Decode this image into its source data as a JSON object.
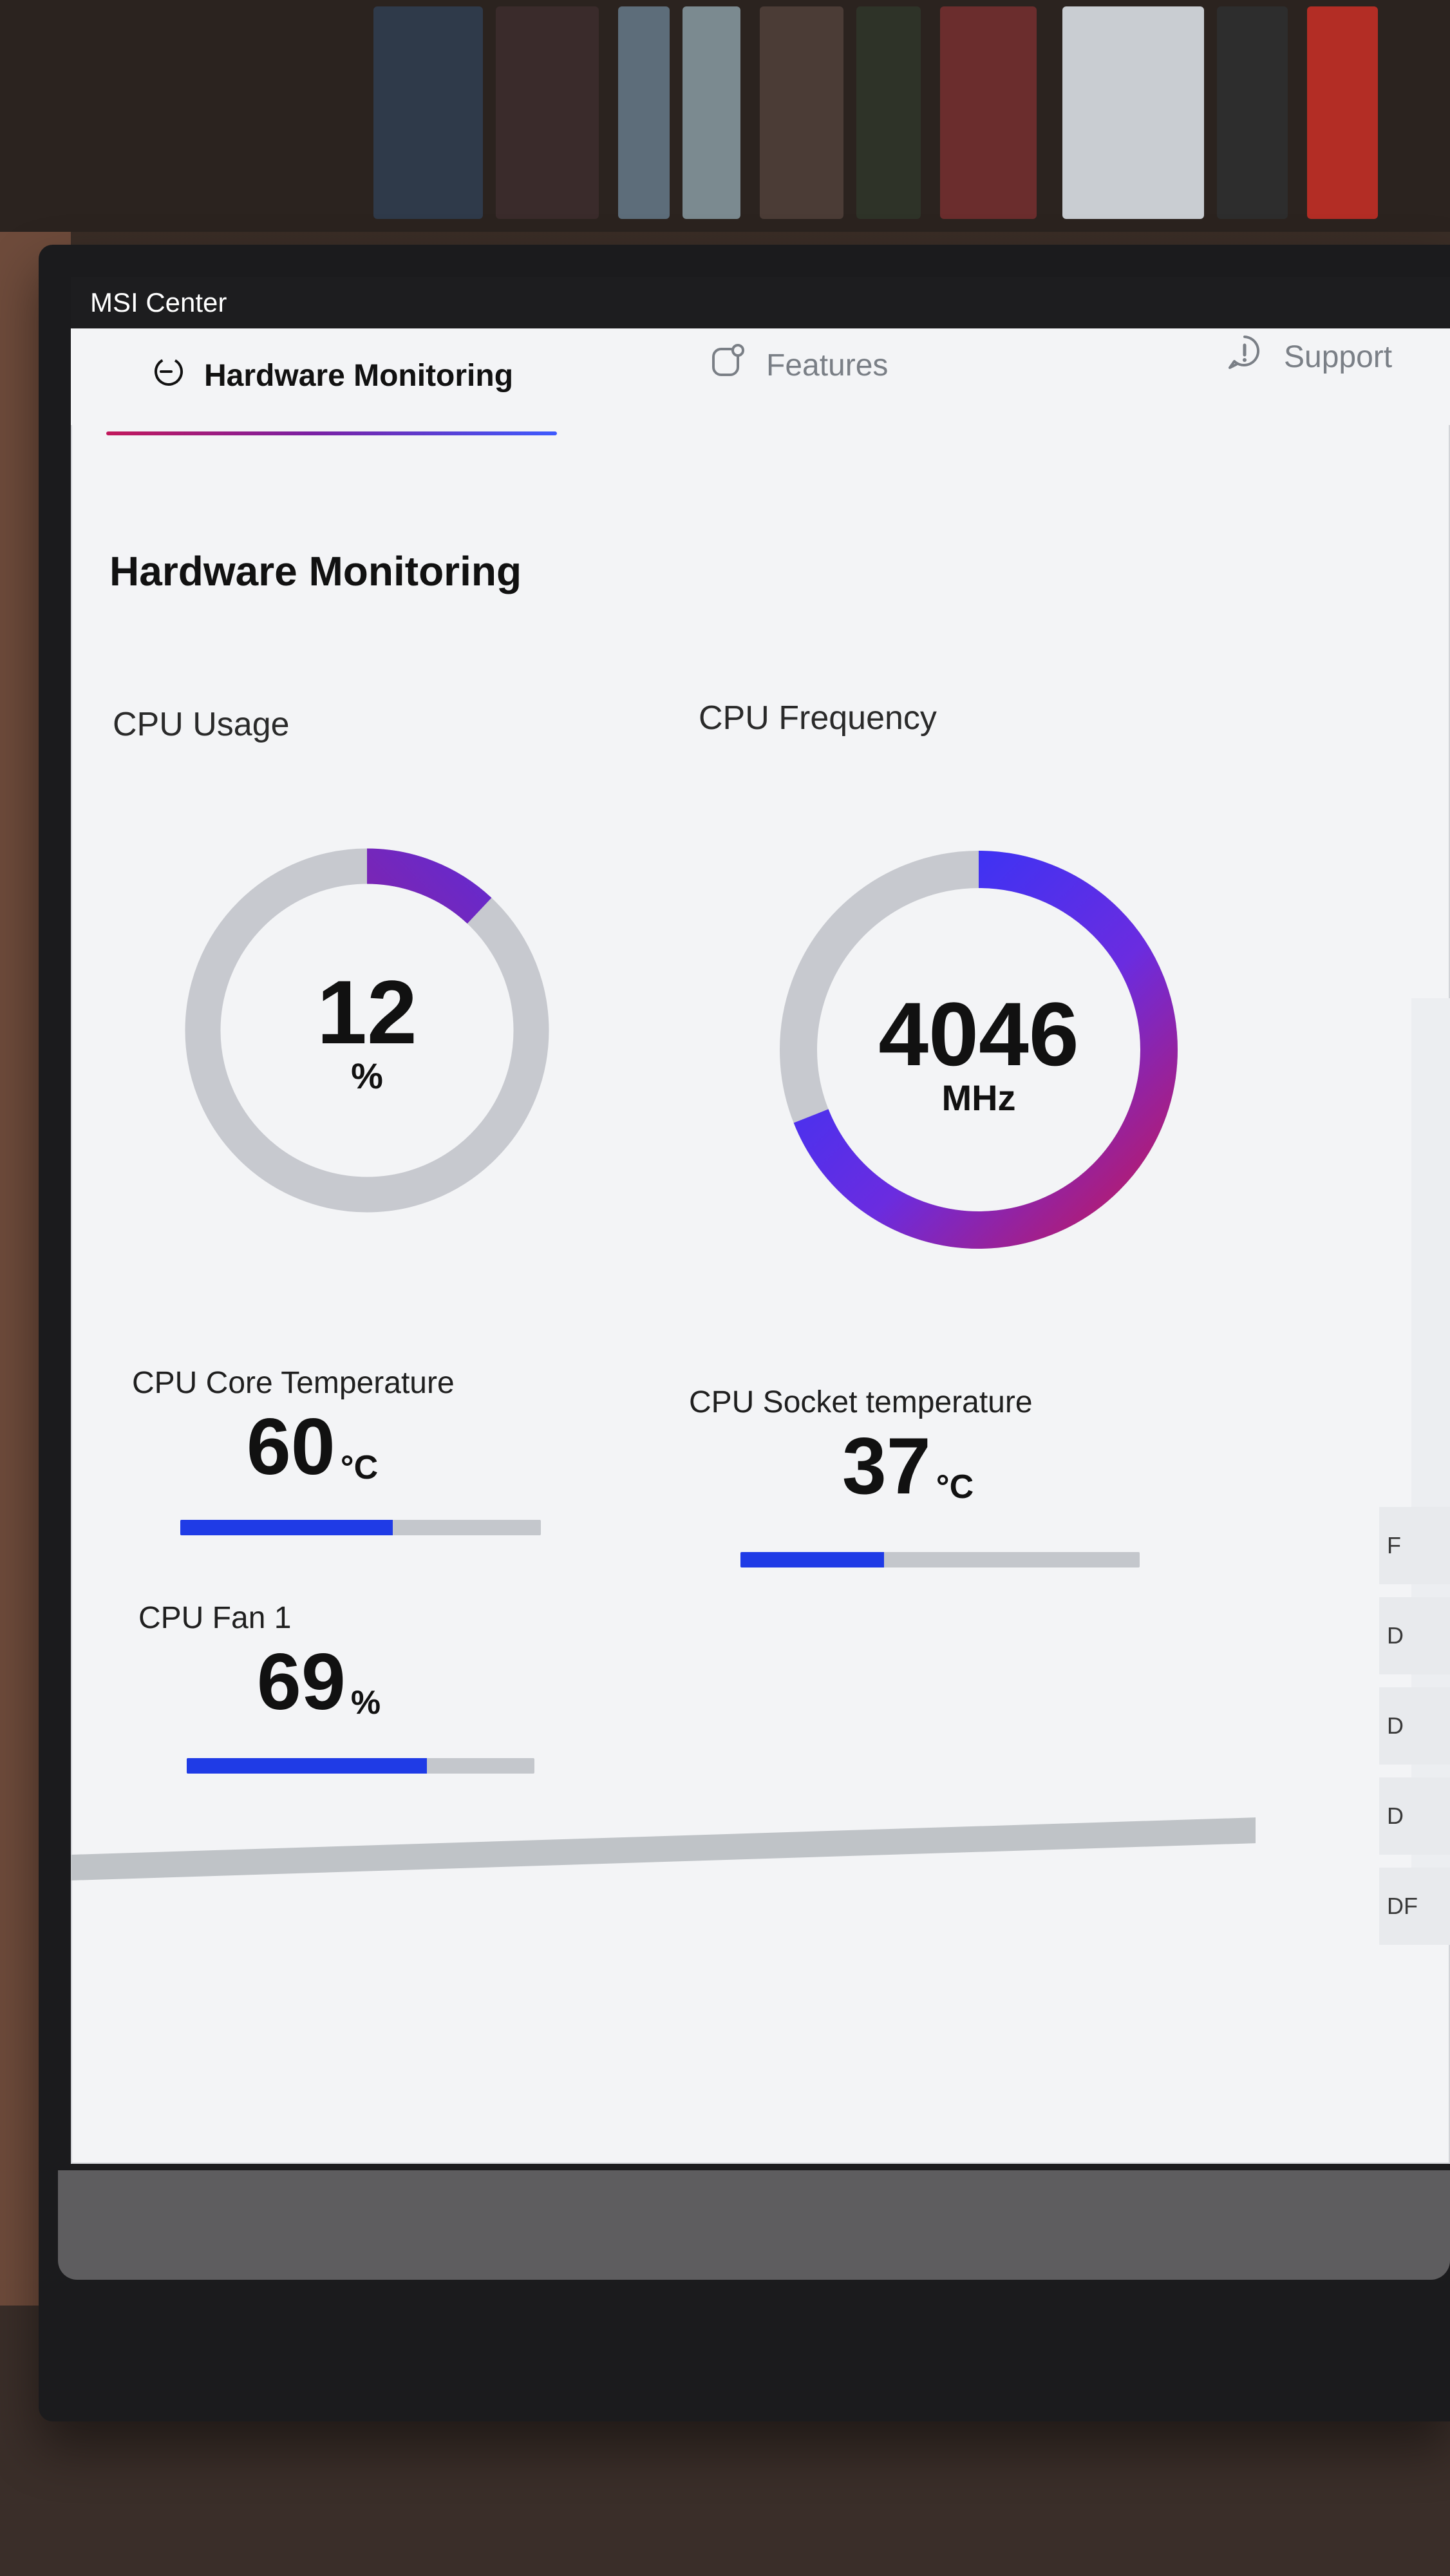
{
  "window": {
    "title": "MSI Center"
  },
  "tabs": [
    {
      "label": "Hardware Monitoring",
      "active": true,
      "icon": "hardware-monitoring-icon"
    },
    {
      "label": "Features",
      "active": false,
      "icon": "features-icon"
    },
    {
      "label": "Support",
      "active": false,
      "icon": "support-icon"
    }
  ],
  "page": {
    "title": "Hardware Monitoring"
  },
  "gauges": {
    "cpu_usage": {
      "label": "CPU Usage",
      "value": "12",
      "unit": "%",
      "fraction": 0.12
    },
    "cpu_frequency": {
      "label": "CPU Frequency",
      "value": "4046",
      "unit": "MHz",
      "fraction": 0.69
    }
  },
  "metrics": {
    "cpu_core_temperature": {
      "label": "CPU Core Temperature",
      "value": "60",
      "unit": "°C",
      "fraction": 0.59
    },
    "cpu_socket_temperature": {
      "label": "CPU Socket temperature",
      "value": "37",
      "unit": "°C",
      "fraction": 0.36
    },
    "cpu_fan_1": {
      "label": "CPU Fan 1",
      "value": "69",
      "unit": "%",
      "fraction": 0.69
    }
  },
  "right_labels": [
    {
      "label": "F"
    },
    {
      "label": "D"
    },
    {
      "label": "D"
    },
    {
      "label": "D"
    },
    {
      "label": "DF"
    }
  ],
  "colors": {
    "accent_blue": "#1f3be6",
    "accent_purple": "#7b1fa2",
    "accent_pink": "#c2185b",
    "gauge_track": "#c7c9cf"
  }
}
